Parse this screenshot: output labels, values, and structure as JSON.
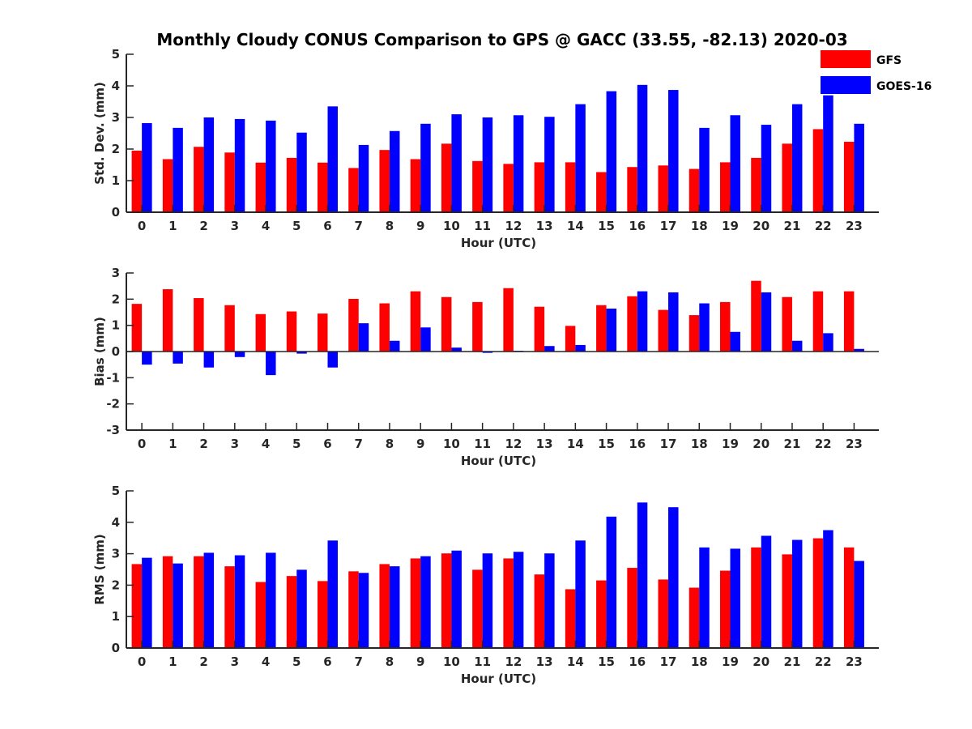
{
  "title": "Monthly Cloudy CONUS Comparison to GPS @ GACC (33.55, -82.13) 2020-03",
  "legend": [
    {
      "name": "GFS",
      "color": "#ff0000"
    },
    {
      "name": "GOES-16",
      "color": "#0000ff"
    }
  ],
  "chart_data": [
    {
      "type": "bar",
      "xlabel": "Hour (UTC)",
      "ylabel": "Std. Dev. (mm)",
      "ylim": [
        0,
        5
      ],
      "yticks": [
        0,
        1,
        2,
        3,
        4,
        5
      ],
      "categories": [
        0,
        1,
        2,
        3,
        4,
        5,
        6,
        7,
        8,
        9,
        10,
        11,
        12,
        13,
        14,
        15,
        16,
        17,
        18,
        19,
        20,
        21,
        22,
        23
      ],
      "series": [
        {
          "name": "GFS",
          "values": [
            1.95,
            1.68,
            2.07,
            1.89,
            1.57,
            1.72,
            1.57,
            1.4,
            1.97,
            1.68,
            2.17,
            1.62,
            1.53,
            1.58,
            1.58,
            1.27,
            1.43,
            1.48,
            1.37,
            1.58,
            1.72,
            2.17,
            2.63,
            2.23
          ]
        },
        {
          "name": "GOES-16",
          "values": [
            2.82,
            2.67,
            3.0,
            2.95,
            2.9,
            2.52,
            3.35,
            2.13,
            2.57,
            2.8,
            3.1,
            3.0,
            3.07,
            3.02,
            3.42,
            3.83,
            4.03,
            3.87,
            2.67,
            3.07,
            2.77,
            3.42,
            3.7,
            2.8
          ]
        }
      ]
    },
    {
      "type": "bar",
      "xlabel": "Hour (UTC)",
      "ylabel": "Bias (mm)",
      "ylim": [
        -3,
        3
      ],
      "yticks": [
        -3,
        -2,
        -1,
        0,
        1,
        2,
        3
      ],
      "categories": [
        0,
        1,
        2,
        3,
        4,
        5,
        6,
        7,
        8,
        9,
        10,
        11,
        12,
        13,
        14,
        15,
        16,
        17,
        18,
        19,
        20,
        21,
        22,
        23
      ],
      "series": [
        {
          "name": "GFS",
          "values": [
            1.82,
            2.38,
            2.04,
            1.77,
            1.43,
            1.53,
            1.45,
            2.01,
            1.84,
            2.3,
            2.08,
            1.89,
            2.42,
            1.71,
            0.98,
            1.77,
            2.11,
            1.59,
            1.39,
            1.89,
            2.7,
            2.08,
            2.3,
            2.3
          ]
        },
        {
          "name": "GOES-16",
          "values": [
            -0.5,
            -0.46,
            -0.61,
            -0.21,
            -0.9,
            -0.08,
            -0.61,
            1.08,
            0.41,
            0.92,
            0.15,
            -0.05,
            0.03,
            0.21,
            0.25,
            1.64,
            2.3,
            2.26,
            1.84,
            0.75,
            2.26,
            0.41,
            0.7,
            0.1
          ]
        }
      ]
    },
    {
      "type": "bar",
      "xlabel": "Hour (UTC)",
      "ylabel": "RMS (mm)",
      "ylim": [
        0,
        5
      ],
      "yticks": [
        0,
        1,
        2,
        3,
        4,
        5
      ],
      "categories": [
        0,
        1,
        2,
        3,
        4,
        5,
        6,
        7,
        8,
        9,
        10,
        11,
        12,
        13,
        14,
        15,
        16,
        17,
        18,
        19,
        20,
        21,
        22,
        23
      ],
      "series": [
        {
          "name": "GFS",
          "values": [
            2.67,
            2.92,
            2.92,
            2.6,
            2.1,
            2.29,
            2.13,
            2.44,
            2.67,
            2.85,
            3.01,
            2.49,
            2.85,
            2.34,
            1.87,
            2.15,
            2.55,
            2.18,
            1.92,
            2.46,
            3.2,
            2.98,
            3.49,
            3.2
          ]
        },
        {
          "name": "GOES-16",
          "values": [
            2.87,
            2.69,
            3.03,
            2.95,
            3.03,
            2.49,
            3.42,
            2.39,
            2.6,
            2.92,
            3.1,
            3.01,
            3.06,
            3.01,
            3.42,
            4.18,
            4.63,
            4.48,
            3.2,
            3.16,
            3.57,
            3.44,
            3.75,
            2.77
          ]
        }
      ]
    }
  ]
}
